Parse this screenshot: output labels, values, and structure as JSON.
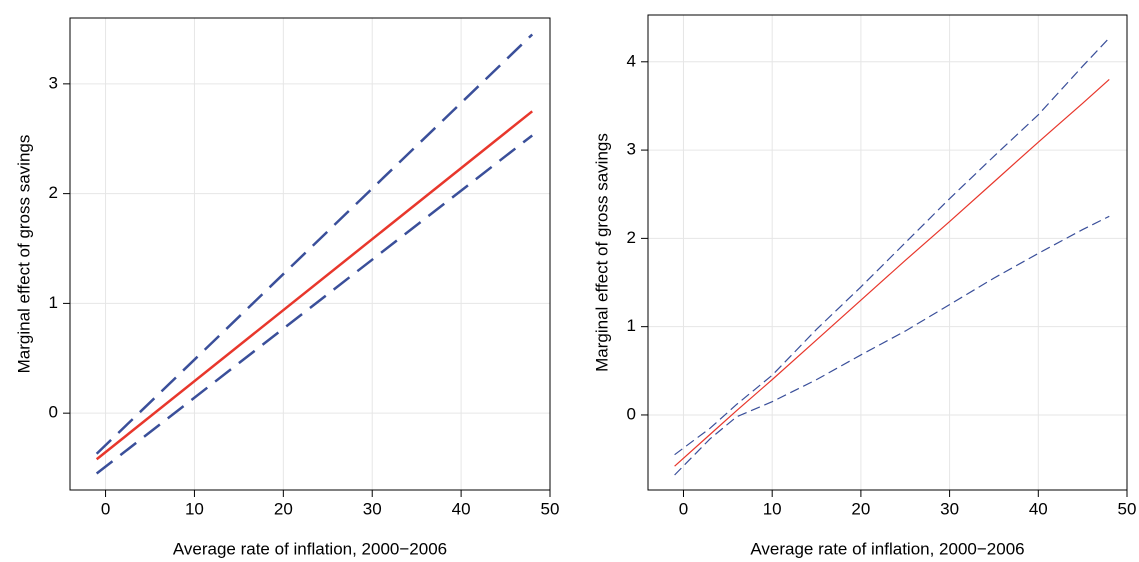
{
  "chart_data": [
    {
      "type": "line",
      "x_label": "Average rate of inflation, 2000−2006",
      "y_label": "Marginal effect of gross savings",
      "x": [
        -1,
        48
      ],
      "series": [
        {
          "color": "#e8372c",
          "dashed": false,
          "values": [
            -0.42,
            2.75
          ]
        },
        {
          "color": "#3a4f9a",
          "dashed": true,
          "values": [
            -0.37,
            3.45
          ]
        },
        {
          "color": "#3a4f9a",
          "dashed": true,
          "values": [
            -0.55,
            2.53
          ]
        }
      ],
      "xlim": [
        -4,
        50
      ],
      "ylim": [
        -0.7,
        3.6
      ],
      "xticks": [
        0,
        10,
        20,
        30,
        40,
        50
      ],
      "yticks": [
        0,
        1,
        2,
        3
      ],
      "grid": true,
      "line_width": 2.5
    },
    {
      "type": "line",
      "x_label": "Average rate of inflation, 2000−2006",
      "y_label": "Marginal effect of gross savings",
      "x": [
        -1,
        3,
        6,
        10,
        15,
        20,
        25,
        30,
        35,
        40,
        45,
        48
      ],
      "series": [
        {
          "color": "#e8372c",
          "dashed": false,
          "values": [
            -0.58,
            -0.22,
            0.05,
            0.4,
            0.85,
            1.3,
            1.75,
            2.19,
            2.64,
            3.09,
            3.53,
            3.8
          ]
        },
        {
          "color": "#3a4f9a",
          "dashed": true,
          "values": [
            -0.45,
            -0.15,
            0.12,
            0.45,
            0.97,
            1.45,
            1.95,
            2.45,
            2.93,
            3.4,
            3.95,
            4.27
          ]
        },
        {
          "color": "#3a4f9a",
          "dashed": true,
          "values": [
            -0.68,
            -0.27,
            -0.02,
            0.15,
            0.4,
            0.68,
            0.95,
            1.25,
            1.55,
            1.83,
            2.1,
            2.25
          ]
        }
      ],
      "xlim": [
        -4,
        50
      ],
      "ylim": [
        -0.85,
        4.53
      ],
      "xticks": [
        0,
        10,
        20,
        30,
        40,
        50
      ],
      "yticks": [
        0,
        1,
        2,
        3,
        4
      ],
      "grid": true,
      "line_width": 1.2
    }
  ]
}
